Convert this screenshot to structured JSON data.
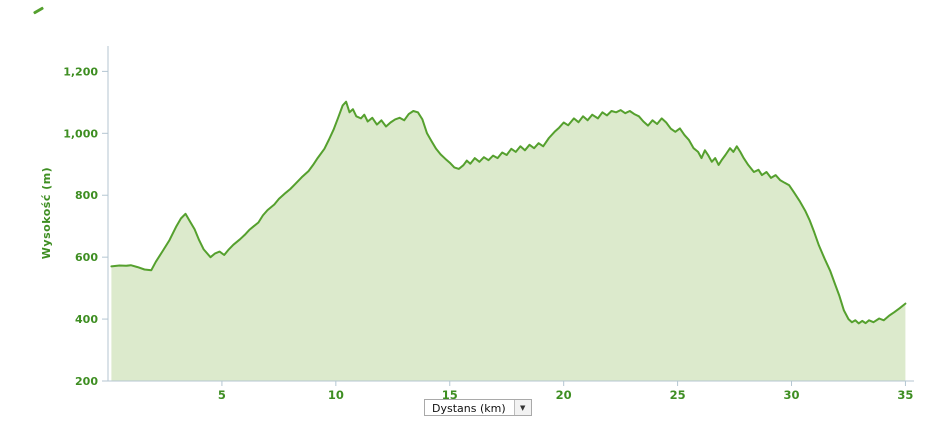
{
  "chart_data": {
    "type": "area",
    "title": "",
    "ylabel": "Wysokość (m)",
    "grid": false,
    "legend": "none",
    "xlim": [
      0,
      35.2
    ],
    "ylim": [
      200,
      1282
    ],
    "yticks": {
      "values": [
        200,
        400,
        600,
        800,
        1000,
        1200
      ],
      "labels": [
        "200",
        "400",
        "600",
        "800",
        "1,000",
        "1,200"
      ]
    },
    "xticks": {
      "values": [
        5,
        10,
        15,
        20,
        25,
        30,
        35
      ],
      "labels": [
        "5",
        "10",
        "15",
        "20",
        "25",
        "30",
        "35"
      ]
    },
    "colors": {
      "line": "#55a02e",
      "fill": "#dceacc",
      "axis": "#b4c6d2",
      "tick_label": "#3e8e22"
    },
    "series": [
      {
        "name": "elevation",
        "x_unit": "km",
        "y_unit": "m",
        "points": [
          [
            0.15,
            570
          ],
          [
            0.5,
            573
          ],
          [
            0.8,
            572
          ],
          [
            1.0,
            574
          ],
          [
            1.3,
            568
          ],
          [
            1.6,
            560
          ],
          [
            1.9,
            558
          ],
          [
            2.1,
            585
          ],
          [
            2.4,
            620
          ],
          [
            2.7,
            655
          ],
          [
            3.0,
            700
          ],
          [
            3.2,
            725
          ],
          [
            3.4,
            740
          ],
          [
            3.6,
            715
          ],
          [
            3.8,
            690
          ],
          [
            4.0,
            655
          ],
          [
            4.2,
            625
          ],
          [
            4.5,
            600
          ],
          [
            4.7,
            612
          ],
          [
            4.9,
            618
          ],
          [
            5.1,
            607
          ],
          [
            5.3,
            625
          ],
          [
            5.5,
            640
          ],
          [
            5.8,
            658
          ],
          [
            6.0,
            672
          ],
          [
            6.2,
            688
          ],
          [
            6.4,
            700
          ],
          [
            6.6,
            712
          ],
          [
            6.8,
            735
          ],
          [
            7.0,
            752
          ],
          [
            7.3,
            770
          ],
          [
            7.5,
            788
          ],
          [
            7.8,
            808
          ],
          [
            8.0,
            820
          ],
          [
            8.2,
            835
          ],
          [
            8.5,
            858
          ],
          [
            8.8,
            878
          ],
          [
            9.0,
            898
          ],
          [
            9.2,
            920
          ],
          [
            9.5,
            950
          ],
          [
            9.7,
            980
          ],
          [
            9.9,
            1012
          ],
          [
            10.1,
            1050
          ],
          [
            10.3,
            1090
          ],
          [
            10.45,
            1102
          ],
          [
            10.6,
            1068
          ],
          [
            10.75,
            1078
          ],
          [
            10.9,
            1055
          ],
          [
            11.1,
            1048
          ],
          [
            11.25,
            1060
          ],
          [
            11.4,
            1038
          ],
          [
            11.6,
            1050
          ],
          [
            11.8,
            1028
          ],
          [
            12.0,
            1042
          ],
          [
            12.2,
            1022
          ],
          [
            12.4,
            1035
          ],
          [
            12.6,
            1045
          ],
          [
            12.8,
            1050
          ],
          [
            13.0,
            1042
          ],
          [
            13.2,
            1062
          ],
          [
            13.4,
            1072
          ],
          [
            13.6,
            1068
          ],
          [
            13.8,
            1045
          ],
          [
            14.0,
            1000
          ],
          [
            14.2,
            975
          ],
          [
            14.4,
            950
          ],
          [
            14.6,
            932
          ],
          [
            14.8,
            918
          ],
          [
            15.0,
            905
          ],
          [
            15.2,
            890
          ],
          [
            15.4,
            885
          ],
          [
            15.6,
            897
          ],
          [
            15.75,
            912
          ],
          [
            15.9,
            902
          ],
          [
            16.1,
            920
          ],
          [
            16.3,
            908
          ],
          [
            16.5,
            923
          ],
          [
            16.7,
            913
          ],
          [
            16.9,
            928
          ],
          [
            17.1,
            920
          ],
          [
            17.3,
            938
          ],
          [
            17.5,
            930
          ],
          [
            17.7,
            950
          ],
          [
            17.9,
            940
          ],
          [
            18.1,
            958
          ],
          [
            18.3,
            945
          ],
          [
            18.5,
            963
          ],
          [
            18.7,
            952
          ],
          [
            18.9,
            968
          ],
          [
            19.1,
            958
          ],
          [
            19.35,
            985
          ],
          [
            19.6,
            1005
          ],
          [
            19.8,
            1018
          ],
          [
            20.0,
            1035
          ],
          [
            20.2,
            1026
          ],
          [
            20.45,
            1048
          ],
          [
            20.65,
            1036
          ],
          [
            20.85,
            1055
          ],
          [
            21.05,
            1042
          ],
          [
            21.25,
            1060
          ],
          [
            21.5,
            1048
          ],
          [
            21.7,
            1068
          ],
          [
            21.9,
            1058
          ],
          [
            22.1,
            1072
          ],
          [
            22.3,
            1068
          ],
          [
            22.5,
            1075
          ],
          [
            22.7,
            1065
          ],
          [
            22.9,
            1072
          ],
          [
            23.1,
            1062
          ],
          [
            23.3,
            1055
          ],
          [
            23.5,
            1038
          ],
          [
            23.7,
            1025
          ],
          [
            23.9,
            1042
          ],
          [
            24.1,
            1030
          ],
          [
            24.3,
            1048
          ],
          [
            24.5,
            1035
          ],
          [
            24.7,
            1015
          ],
          [
            24.9,
            1005
          ],
          [
            25.1,
            1016
          ],
          [
            25.3,
            995
          ],
          [
            25.5,
            978
          ],
          [
            25.7,
            952
          ],
          [
            25.9,
            940
          ],
          [
            26.05,
            920
          ],
          [
            26.2,
            945
          ],
          [
            26.35,
            928
          ],
          [
            26.5,
            908
          ],
          [
            26.65,
            920
          ],
          [
            26.8,
            898
          ],
          [
            26.95,
            915
          ],
          [
            27.1,
            930
          ],
          [
            27.3,
            952
          ],
          [
            27.45,
            940
          ],
          [
            27.6,
            958
          ],
          [
            27.75,
            940
          ],
          [
            27.9,
            920
          ],
          [
            28.1,
            898
          ],
          [
            28.35,
            875
          ],
          [
            28.55,
            882
          ],
          [
            28.7,
            865
          ],
          [
            28.9,
            875
          ],
          [
            29.1,
            856
          ],
          [
            29.3,
            865
          ],
          [
            29.5,
            849
          ],
          [
            29.7,
            840
          ],
          [
            29.9,
            832
          ],
          [
            30.1,
            810
          ],
          [
            30.35,
            782
          ],
          [
            30.6,
            750
          ],
          [
            30.8,
            718
          ],
          [
            31.0,
            680
          ],
          [
            31.2,
            638
          ],
          [
            31.45,
            595
          ],
          [
            31.7,
            555
          ],
          [
            31.9,
            515
          ],
          [
            32.1,
            475
          ],
          [
            32.3,
            428
          ],
          [
            32.5,
            400
          ],
          [
            32.65,
            390
          ],
          [
            32.8,
            396
          ],
          [
            32.95,
            386
          ],
          [
            33.1,
            394
          ],
          [
            33.25,
            387
          ],
          [
            33.4,
            396
          ],
          [
            33.6,
            390
          ],
          [
            33.85,
            402
          ],
          [
            34.05,
            396
          ],
          [
            34.3,
            412
          ],
          [
            34.5,
            422
          ],
          [
            34.75,
            435
          ],
          [
            35.0,
            450
          ]
        ]
      }
    ]
  },
  "controls": {
    "x_axis_select": {
      "label": "Dystans (km)",
      "arrow": "▼"
    }
  }
}
